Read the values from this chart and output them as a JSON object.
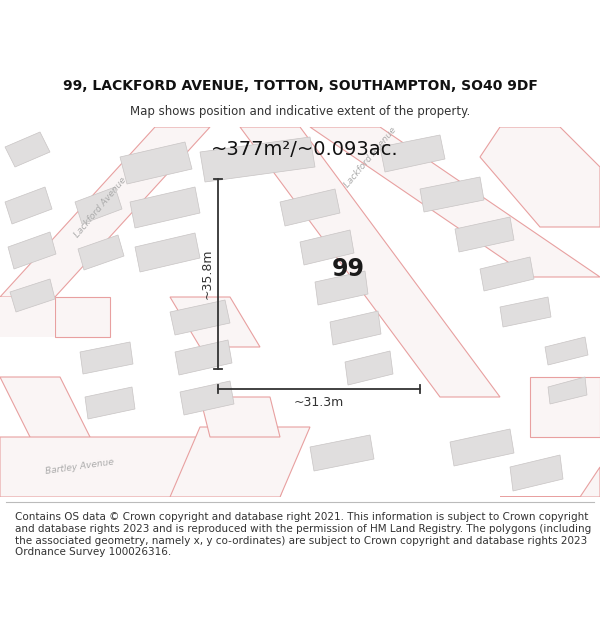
{
  "title": "99, LACKFORD AVENUE, TOTTON, SOUTHAMPTON, SO40 9DF",
  "subtitle": "Map shows position and indicative extent of the property.",
  "area_text": "~377m²/~0.093ac.",
  "dim_width": "~31.3m",
  "dim_height": "~35.8m",
  "number_label": "99",
  "footer": "Contains OS data © Crown copyright and database right 2021. This information is subject to Crown copyright and database rights 2023 and is reproduced with the permission of HM Land Registry. The polygons (including the associated geometry, namely x, y co-ordinates) are subject to Crown copyright and database rights 2023 Ordnance Survey 100026316.",
  "map_bg": "#faf9f8",
  "title_bg": "#ffffff",
  "footer_bg": "#ffffff",
  "road_edge_color": "#e8a0a0",
  "road_fill_color": "#faf5f5",
  "building_fill": "#e0dede",
  "building_edge": "#c8c4c4",
  "highlight_color": "#dd0000",
  "dim_color": "#333333",
  "road_label_color": "#aaaaaa",
  "title_fontsize": 10,
  "subtitle_fontsize": 8.5,
  "footer_fontsize": 7.5,
  "area_fontsize": 14,
  "label_fontsize": 18,
  "dim_fontsize": 9
}
